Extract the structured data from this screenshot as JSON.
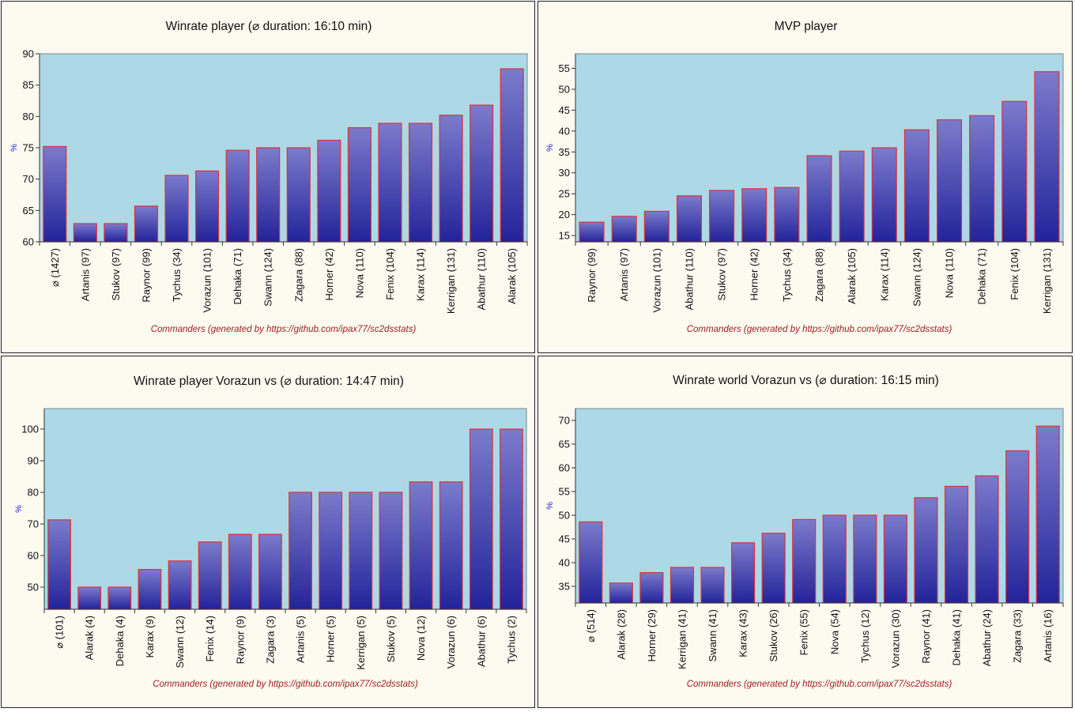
{
  "colors": {
    "panel_bg": "#fdfaf0",
    "plot_bg": "#add8e6",
    "bar_top": "#7b7bcc",
    "bar_bottom": "#23239a",
    "bar_border": "#e0303a",
    "xlabel": "#a02020",
    "ylabel": "#1a1ad0"
  },
  "chart_data": [
    {
      "type": "bar",
      "title": "Winrate player (⌀ duration: 16:10 min)",
      "ylabel": "%",
      "xlabel": "Commanders (generated by https://github.com/ipax77/sc2dsstats)",
      "ylim": [
        60,
        90
      ],
      "yticks": [
        60,
        65,
        70,
        75,
        80,
        85,
        90
      ],
      "categories": [
        "⌀ (1427)",
        "Artanis (97)",
        "Stukov (97)",
        "Raynor (99)",
        "Tychus (34)",
        "Vorazun (101)",
        "Dehaka (71)",
        "Swann (124)",
        "Zagara (88)",
        "Horner (42)",
        "Nova (110)",
        "Fenix (104)",
        "Karax (114)",
        "Kerrigan (131)",
        "Abathur (110)",
        "Alarak (105)"
      ],
      "values": [
        75.2,
        62.9,
        62.9,
        65.7,
        70.6,
        71.3,
        74.6,
        75.0,
        75.0,
        76.2,
        78.2,
        78.9,
        78.9,
        80.2,
        81.8,
        87.6
      ]
    },
    {
      "type": "bar",
      "title": "MVP player",
      "ylabel": "%",
      "xlabel": "Commanders (generated by https://github.com/ipax77/sc2dsstats)",
      "ylim": [
        13.5,
        58.5
      ],
      "yticks": [
        15,
        20,
        25,
        30,
        35,
        40,
        45,
        50,
        55
      ],
      "categories": [
        "Raynor (99)",
        "Artanis (97)",
        "Vorazun (101)",
        "Abathur (110)",
        "Stukov (97)",
        "Horner (42)",
        "Tychus (34)",
        "Zagara (88)",
        "Alarak (105)",
        "Karax (114)",
        "Swann (124)",
        "Nova (110)",
        "Dehaka (71)",
        "Fenix (104)",
        "Kerrigan (131)"
      ],
      "values": [
        18.2,
        19.6,
        20.8,
        24.5,
        25.8,
        26.2,
        26.5,
        34.1,
        35.2,
        36.0,
        40.3,
        42.7,
        43.7,
        47.1,
        54.2
      ]
    },
    {
      "type": "bar",
      "title": "Winrate player Vorazun vs (⌀ duration: 14:47 min)",
      "ylabel": "%",
      "xlabel": "Commanders (generated by https://github.com/ipax77/sc2dsstats)",
      "ylim": [
        43,
        106.5
      ],
      "yticks": [
        50,
        60,
        70,
        80,
        90,
        100
      ],
      "categories": [
        "⌀ (101)",
        "Alarak (4)",
        "Dehaka (4)",
        "Karax (9)",
        "Swann (12)",
        "Fenix (14)",
        "Raynor (9)",
        "Zagara (3)",
        "Artanis (5)",
        "Horner (5)",
        "Kerrigan (5)",
        "Stukov (5)",
        "Nova (12)",
        "Vorazun (6)",
        "Abathur (6)",
        "Tychus (2)"
      ],
      "values": [
        71.3,
        50,
        50,
        55.6,
        58.3,
        64.3,
        66.7,
        66.7,
        80,
        80,
        80,
        80,
        83.3,
        83.3,
        100,
        100
      ]
    },
    {
      "type": "bar",
      "title": "Winrate world Vorazun vs (⌀ duration: 16:15 min)",
      "ylabel": "%",
      "xlabel": "Commanders (generated by https://github.com/ipax77/sc2dsstats)",
      "ylim": [
        31.5,
        72.5
      ],
      "yticks": [
        35,
        40,
        45,
        50,
        55,
        60,
        65,
        70
      ],
      "categories": [
        "⌀ (514)",
        "Alarak (28)",
        "Horner (29)",
        "Kerrigan (41)",
        "Swann (41)",
        "Karax (43)",
        "Stukov (26)",
        "Fenix (55)",
        "Nova (54)",
        "Tychus (12)",
        "Vorazun (30)",
        "Raynor (41)",
        "Dehaka (41)",
        "Abathur (24)",
        "Zagara (33)",
        "Artanis (16)"
      ],
      "values": [
        48.6,
        35.7,
        37.9,
        39.0,
        39.0,
        44.2,
        46.2,
        49.1,
        50.0,
        50.0,
        50.0,
        53.7,
        56.1,
        58.3,
        63.6,
        68.8
      ]
    }
  ]
}
